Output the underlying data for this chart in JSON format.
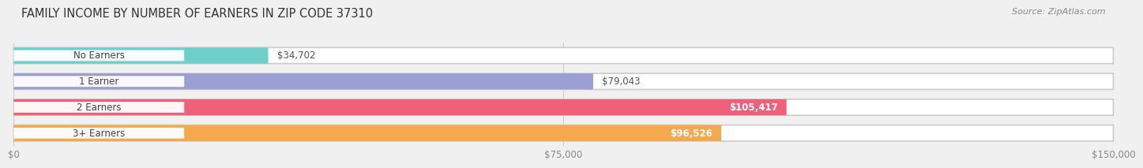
{
  "title": "FAMILY INCOME BY NUMBER OF EARNERS IN ZIP CODE 37310",
  "source": "Source: ZipAtlas.com",
  "categories": [
    "No Earners",
    "1 Earner",
    "2 Earners",
    "3+ Earners"
  ],
  "values": [
    34702,
    79043,
    105417,
    96526
  ],
  "labels": [
    "$34,702",
    "$79,043",
    "$105,417",
    "$96,526"
  ],
  "label_inside": [
    false,
    false,
    true,
    true
  ],
  "bar_colors": [
    "#6ecfca",
    "#9b9fd4",
    "#f0607a",
    "#f5a84e"
  ],
  "xlim": [
    0,
    150000
  ],
  "xticks": [
    0,
    75000,
    150000
  ],
  "xtick_labels": [
    "$0",
    "$75,000",
    "$150,000"
  ],
  "background_color": "#f0f0f0",
  "title_fontsize": 10.5,
  "source_fontsize": 8,
  "label_fontsize": 8.5,
  "tick_fontsize": 8.5,
  "cat_fontsize": 8.5
}
